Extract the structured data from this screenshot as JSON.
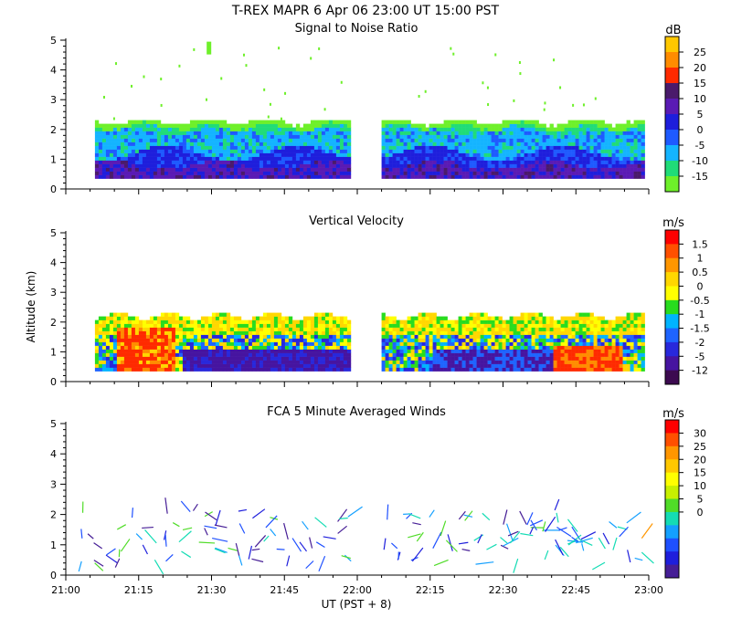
{
  "header": {
    "title": "T-REX   MAPR   6 Apr 06   23:00 UT   15:00   PST"
  },
  "ui": {
    "y_axis_label": "Altitude (km)",
    "x_axis_label": "UT  (PST + 8)"
  },
  "chart_data": [
    {
      "type": "heatmap",
      "title": "Signal to Noise Ratio",
      "units": "dB",
      "xlabel": "UT  (PST + 8)",
      "ylabel": "Altitude (km)",
      "xlim": [
        "21:00",
        "23:00"
      ],
      "ylim": [
        0,
        5
      ],
      "x_ticks": [
        "21:00",
        "21:15",
        "21:30",
        "21:45",
        "22:00",
        "22:15",
        "22:30",
        "22:45",
        "23:00"
      ],
      "y_ticks": [
        "0",
        "1",
        "2",
        "3",
        "4",
        "5"
      ],
      "data_gap": [
        "22:00",
        "22:05"
      ],
      "colorbar_labels": [
        "25",
        "20",
        "15",
        "10",
        "5",
        "0",
        "-5",
        "-10",
        "-15"
      ],
      "colors": [
        "#ffc800",
        "#ff8c00",
        "#ff2a00",
        "#4a1a6b",
        "#5a1ab4",
        "#1e1edc",
        "#1e5aff",
        "#14b4ff",
        "#20dc78",
        "#6ef02a"
      ],
      "layers": [
        {
          "alt_bottom": 0.35,
          "alt_top": 2.3,
          "dominant": "green"
        },
        {
          "alt_bottom": 0.35,
          "alt_top": 2.0,
          "dominant": "cyan"
        },
        {
          "alt_bottom": 0.35,
          "alt_top": 1.2,
          "dominant": "blue"
        },
        {
          "alt_bottom": 0.35,
          "alt_top": 0.8,
          "dominant": "purple"
        }
      ]
    },
    {
      "type": "heatmap",
      "title": "Vertical Velocity",
      "units": "m/s",
      "ylim": [
        0,
        5
      ],
      "y_ticks": [
        "0",
        "1",
        "2",
        "3",
        "4",
        "5"
      ],
      "colorbar_labels": [
        "1.5",
        "1",
        "0.5",
        "0",
        "-0.5",
        "-1",
        "-1.5",
        "-2",
        "-5",
        "-12"
      ],
      "colors": [
        "#ff0000",
        "#ff5000",
        "#ff9600",
        "#ffd700",
        "#ffff00",
        "#28dc1e",
        "#00b4ff",
        "#1e64ff",
        "#2828dc",
        "#4614a0",
        "#3c0a50"
      ]
    },
    {
      "type": "scatter",
      "title": "FCA 5 Minute Averaged Winds",
      "units": "m/s",
      "ylim": [
        0,
        5
      ],
      "y_ticks": [
        "0",
        "1",
        "2",
        "3",
        "4",
        "5"
      ],
      "colorbar_labels": [
        "30",
        "25",
        "20",
        "15",
        "10",
        "5",
        "0"
      ],
      "colors": [
        "#ff0000",
        "#ff5000",
        "#ff9600",
        "#ffc800",
        "#ffff00",
        "#c8f000",
        "#50dc28",
        "#14dcb4",
        "#14a0ff",
        "#1e50ff",
        "#1e1edc",
        "#461e96"
      ],
      "wind_barbs_height_range": [
        0.4,
        2.2
      ]
    }
  ]
}
